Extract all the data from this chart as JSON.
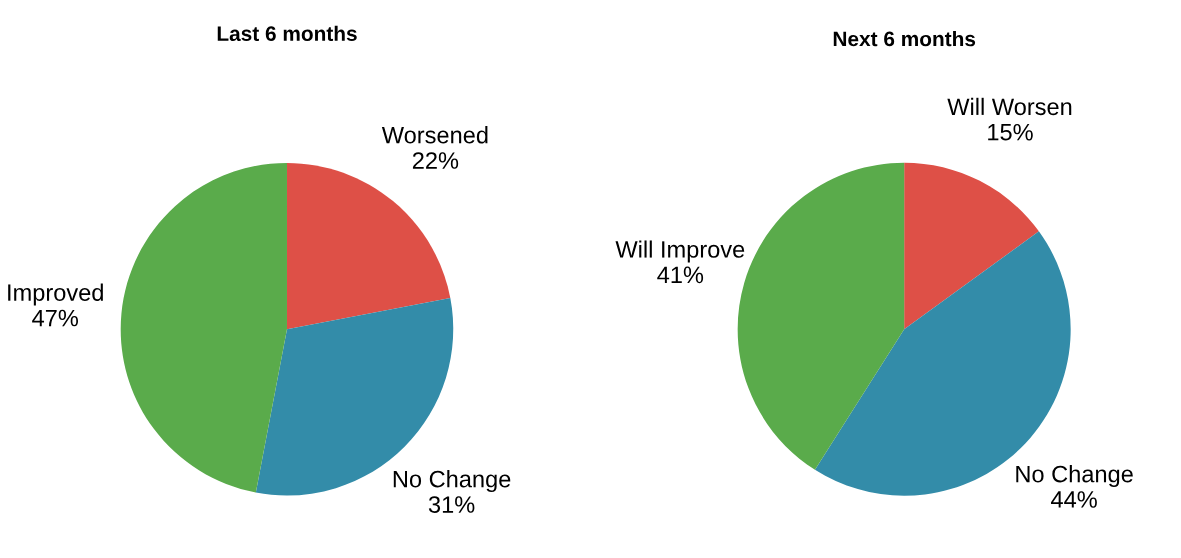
{
  "chart_data": [
    {
      "type": "pie",
      "title": "Last 6 months",
      "categories": [
        "Worsened",
        "No Change",
        "Improved"
      ],
      "values": [
        22,
        31,
        47
      ],
      "value_labels": [
        "22%",
        "31%",
        "47%"
      ],
      "colors": [
        "#de5047",
        "#338ca9",
        "#5aab4b"
      ]
    },
    {
      "type": "pie",
      "title": "Next 6 months",
      "categories": [
        "Will Worsen",
        "No Change",
        "Will Improve"
      ],
      "values": [
        15,
        44,
        41
      ],
      "value_labels": [
        "15%",
        "44%",
        "41%"
      ],
      "colors": [
        "#de5047",
        "#338ca9",
        "#5aab4b"
      ]
    }
  ]
}
